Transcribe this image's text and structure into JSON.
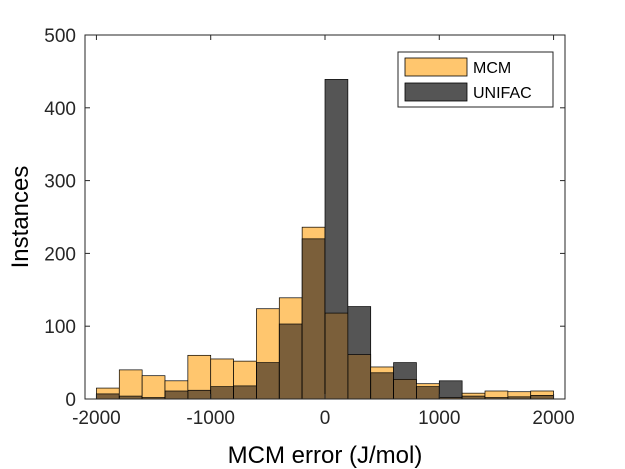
{
  "chart_data": {
    "type": "bar",
    "xlabel": "MCM error (J/mol)",
    "ylabel": "Instances",
    "xlim": [
      -2100,
      2100
    ],
    "ylim": [
      0,
      500
    ],
    "xticks": [
      -2000,
      -1000,
      0,
      1000,
      2000
    ],
    "yticks": [
      0,
      100,
      200,
      300,
      400,
      500
    ],
    "bin_edges": [
      -2000,
      -1800,
      -1600,
      -1400,
      -1200,
      -1000,
      -800,
      -600,
      -400,
      -200,
      0,
      200,
      400,
      600,
      800,
      1000,
      1200,
      1400,
      1600,
      1800,
      2000
    ],
    "series": [
      {
        "name": "MCM",
        "color": "#FFC66E",
        "values": [
          15,
          40,
          32,
          25,
          60,
          55,
          52,
          124,
          139,
          236,
          118,
          61,
          44,
          27,
          21,
          2,
          8,
          11,
          10,
          11
        ]
      },
      {
        "name": "UNIFAC",
        "color": "#555555",
        "values": [
          7,
          4,
          2,
          11,
          12,
          17,
          18,
          50,
          103,
          220,
          439,
          127,
          36,
          50,
          17,
          25,
          4,
          2,
          3,
          5
        ]
      }
    ],
    "overlap_color": "#7B5F3A",
    "legend_position": "top-right",
    "grid": false
  }
}
